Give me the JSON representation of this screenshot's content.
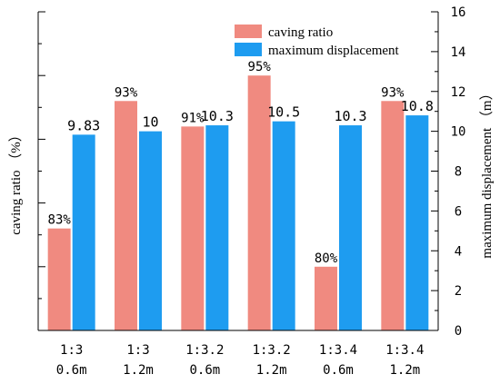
{
  "chart_data": {
    "type": "bar",
    "categories": [
      [
        "1:3",
        "0.6m"
      ],
      [
        "1:3",
        "1.2m"
      ],
      [
        "1:3.2",
        "0.6m"
      ],
      [
        "1:3.2",
        "1.2m"
      ],
      [
        "1:3.4",
        "0.6m"
      ],
      [
        "1:3.4",
        "1.2m"
      ]
    ],
    "series": [
      {
        "name": "caving ratio",
        "axis": "left",
        "color": "#f08a80",
        "values": [
          83,
          93,
          91,
          95,
          80,
          93
        ],
        "labels": [
          "83%",
          "93%",
          "91%",
          "95%",
          "80%",
          "93%"
        ]
      },
      {
        "name": "maximum displacement",
        "axis": "right",
        "color": "#1e9cf0",
        "values": [
          9.83,
          10,
          10.3,
          10.5,
          10.3,
          10.8
        ],
        "labels": [
          "9.83",
          "10",
          "10.3",
          "10.5",
          "10.3",
          "10.8"
        ]
      }
    ],
    "ylabel_left": "caving ratio （%）",
    "ylabel_right": "maximum displacement （m）",
    "ylim_right": [
      0,
      16
    ],
    "yticks_right": [
      "0",
      "2",
      "4",
      "6",
      "8",
      "10",
      "12",
      "14",
      "16"
    ],
    "ylim_left": [
      75,
      100
    ],
    "left_axis_tick_labels_shown": false,
    "legend_position": "top-center",
    "grid": false
  }
}
